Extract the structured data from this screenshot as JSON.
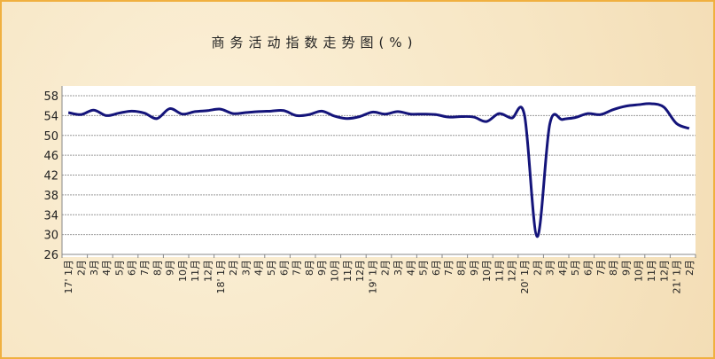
{
  "chart_data": {
    "type": "line",
    "title": "商务活动指数走势图(%)",
    "ylim": [
      26,
      58
    ],
    "yticks": [
      26,
      30,
      34,
      38,
      42,
      46,
      50,
      54,
      58
    ],
    "grid": true,
    "line_color": "#14147a",
    "categories": [
      "17' 1月",
      "2月",
      "3月",
      "4月",
      "5月",
      "6月",
      "7月",
      "8月",
      "9月",
      "10月",
      "11月",
      "12月",
      "18' 1月",
      "2月",
      "3月",
      "4月",
      "5月",
      "6月",
      "7月",
      "8月",
      "9月",
      "10月",
      "11月",
      "12月",
      "19' 1月",
      "2月",
      "3月",
      "4月",
      "5月",
      "6月",
      "7月",
      "8月",
      "9月",
      "10月",
      "11月",
      "12月",
      "20' 1月",
      "2月",
      "3月",
      "4月",
      "5月",
      "6月",
      "7月",
      "8月",
      "9月",
      "10月",
      "11月",
      "12月",
      "21' 1月",
      "2月"
    ],
    "values": [
      54.6,
      54.2,
      55.1,
      54.0,
      54.5,
      54.9,
      54.5,
      53.4,
      55.4,
      54.3,
      54.8,
      55.0,
      55.3,
      54.4,
      54.6,
      54.8,
      54.9,
      55.0,
      54.0,
      54.2,
      54.9,
      53.9,
      53.4,
      53.8,
      54.7,
      54.3,
      54.8,
      54.3,
      54.3,
      54.2,
      53.7,
      53.8,
      53.7,
      52.8,
      54.4,
      53.5,
      54.1,
      29.6,
      52.3,
      53.2,
      53.6,
      54.4,
      54.2,
      55.2,
      55.9,
      56.2,
      56.4,
      55.7,
      52.4,
      51.4
    ]
  }
}
